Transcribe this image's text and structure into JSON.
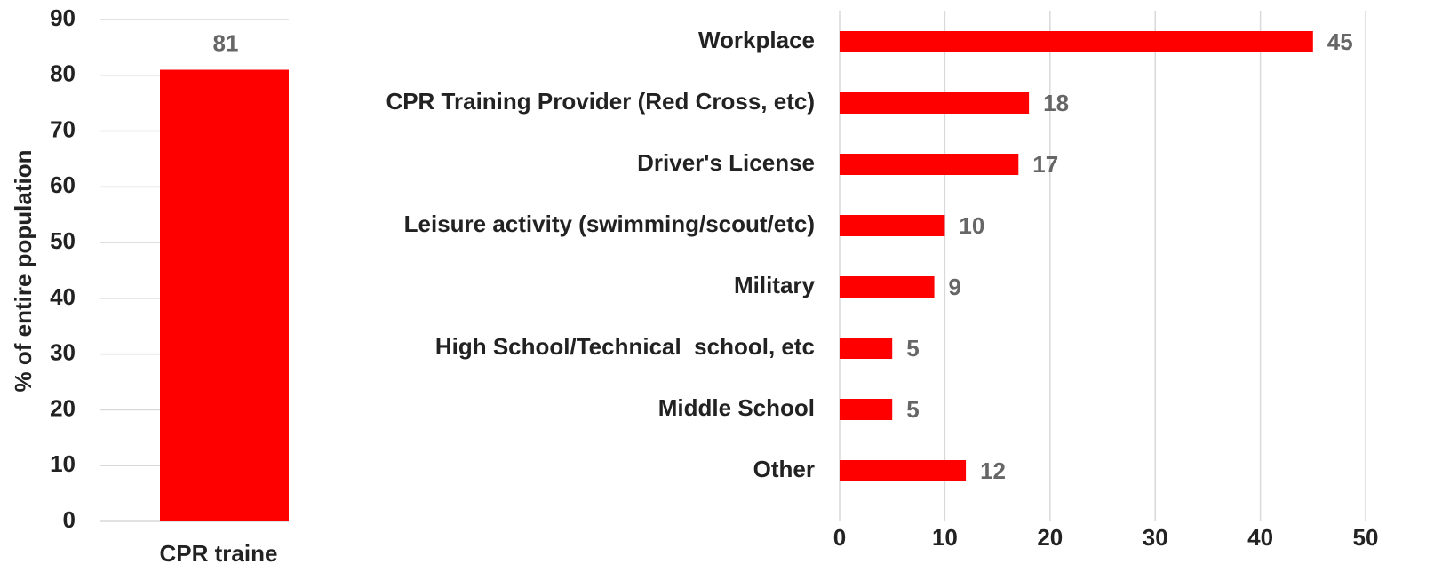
{
  "chart_data": [
    {
      "type": "bar",
      "orientation": "vertical",
      "ylabel": "% of entire population",
      "categories": [
        "CPR traine"
      ],
      "values": [
        81
      ],
      "color": "#ff0000",
      "ylim": [
        0,
        90
      ],
      "yticks": [
        0,
        10,
        20,
        30,
        40,
        50,
        60,
        70,
        80,
        90
      ],
      "grid": true
    },
    {
      "type": "bar",
      "orientation": "horizontal",
      "categories": [
        "Workplace",
        "CPR Training Provider (Red Cross, etc)",
        "Driver's License",
        "Leisure activity (swimming/scout/etc)",
        "Military",
        "High School/Technical  school, etc",
        "Middle School",
        "Other"
      ],
      "values": [
        45,
        18,
        17,
        10,
        9,
        5,
        5,
        12
      ],
      "color": "#ff0000",
      "xlim": [
        0,
        50
      ],
      "xticks": [
        0,
        10,
        20,
        30,
        40,
        50
      ],
      "grid": true
    }
  ]
}
